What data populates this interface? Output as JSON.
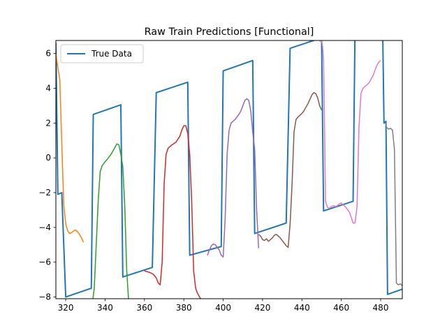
{
  "chart_data": {
    "type": "line",
    "title": "Raw Train Predictions [Functional]",
    "xlabel": "",
    "ylabel": "",
    "xlim": [
      315,
      491
    ],
    "ylim": [
      -8.1,
      6.75
    ],
    "x_ticks": [
      320,
      340,
      360,
      380,
      400,
      420,
      440,
      460,
      480
    ],
    "y_ticks": [
      -8,
      -6,
      -4,
      -2,
      0,
      2,
      4,
      6
    ],
    "grid": false,
    "legend": {
      "placement": "top-left",
      "entries": [
        "True Data"
      ]
    },
    "series": [
      {
        "name": "True Data",
        "color": "#1f77b4",
        "x": [
          315,
          316,
          318,
          320,
          333,
          334,
          348,
          349,
          364,
          366,
          382,
          383,
          399,
          400,
          415,
          416,
          432,
          434,
          450,
          451,
          466,
          467,
          481,
          481.7,
          482.7,
          483.5,
          491
        ],
        "y": [
          6.6,
          -2.1,
          -2.0,
          -8.0,
          -7.5,
          2.5,
          3.05,
          -6.85,
          -6.3,
          3.75,
          4.35,
          -5.6,
          -5.1,
          5.0,
          5.6,
          -4.35,
          -3.75,
          6.3,
          6.9,
          -3.05,
          -2.5,
          7.6,
          7.6,
          2.0,
          2.1,
          -7.85,
          -7.55
        ]
      },
      {
        "color": "#ff7f0e",
        "x": [
          315,
          316,
          317,
          318,
          319,
          320,
          321,
          322,
          323,
          324,
          325,
          326,
          327,
          328,
          329
        ],
        "y": [
          6.0,
          5.2,
          4.5,
          0.8,
          -2.7,
          -3.8,
          -4.2,
          -4.35,
          -4.3,
          -4.2,
          -4.15,
          -4.25,
          -4.4,
          -4.6,
          -4.85
        ]
      },
      {
        "color": "#2ca02c",
        "x": [
          333.5,
          334.5,
          335.5,
          336.5,
          337.5,
          338.5,
          339.5,
          341,
          343,
          345,
          346,
          347,
          348,
          349,
          350,
          351,
          352
        ],
        "y": [
          -8.4,
          -7.5,
          -5.0,
          -2.5,
          -0.8,
          -0.45,
          -0.3,
          -0.1,
          0.2,
          0.6,
          0.8,
          0.75,
          0.2,
          -0.5,
          -2.8,
          -6.5,
          -8.3
        ]
      },
      {
        "color": "#d62728",
        "x": [
          360,
          363,
          364.5,
          366,
          367,
          368,
          369,
          370,
          371,
          372,
          374,
          376,
          378,
          379,
          380,
          381,
          382,
          383,
          384,
          385,
          386,
          387,
          388,
          389
        ],
        "y": [
          -6.5,
          -6.6,
          -6.7,
          -6.9,
          -7.2,
          -7.3,
          -6.0,
          -1.5,
          0.2,
          0.55,
          0.75,
          0.9,
          1.25,
          1.6,
          1.85,
          1.85,
          1.4,
          0.2,
          -2.5,
          -6.5,
          -7.5,
          -7.8,
          -8.0,
          -8.2
        ]
      },
      {
        "color": "#9467bd",
        "x": [
          392,
          393,
          394,
          395,
          396,
          397,
          398,
          399,
          400,
          401,
          402,
          403,
          404,
          405,
          406,
          407,
          408,
          409,
          410,
          411,
          412,
          413,
          414,
          415,
          416,
          417,
          418
        ],
        "y": [
          -5.6,
          -5.3,
          -5.05,
          -4.95,
          -5.0,
          -5.15,
          -5.3,
          -5.6,
          -5.7,
          -3.5,
          0.2,
          1.6,
          2.0,
          2.1,
          2.2,
          2.35,
          2.5,
          2.7,
          3.0,
          3.3,
          3.4,
          3.3,
          2.7,
          1.5,
          0.5,
          -3.0,
          -5.2
        ]
      },
      {
        "color": "#8c564b",
        "x": [
          418,
          419,
          420,
          421,
          422,
          423,
          424,
          425,
          426,
          427,
          428,
          429,
          430,
          431,
          432,
          433,
          434,
          435,
          436,
          437,
          438,
          439,
          440,
          441,
          442,
          443,
          444,
          445,
          446,
          447,
          448,
          449,
          450
        ],
        "y": [
          -4.4,
          -4.5,
          -4.7,
          -4.75,
          -4.65,
          -4.8,
          -4.7,
          -4.6,
          -4.45,
          -4.4,
          -4.5,
          -4.6,
          -4.75,
          -4.9,
          -5.05,
          -5.15,
          -3.8,
          -1.5,
          1.5,
          2.2,
          2.35,
          2.45,
          2.55,
          2.7,
          2.9,
          3.1,
          3.35,
          3.6,
          3.75,
          3.7,
          3.45,
          3.0,
          2.75
        ]
      },
      {
        "color": "#e377c2",
        "x": [
          449,
          450,
          450.5,
          451,
          452,
          453,
          454,
          455,
          456,
          457,
          458,
          459,
          460,
          461,
          462,
          463,
          464,
          465,
          466,
          467,
          468,
          469,
          470,
          471,
          472,
          473,
          474,
          475,
          476,
          477,
          478,
          479,
          480
        ],
        "y": [
          6.7,
          6.8,
          6.4,
          5.6,
          -2.5,
          -2.85,
          -2.9,
          -2.8,
          -2.75,
          -2.8,
          -2.75,
          -2.65,
          -2.6,
          -2.7,
          -2.8,
          -2.95,
          -3.1,
          -3.4,
          -3.75,
          -3.75,
          -2.8,
          1.8,
          3.7,
          4.0,
          4.1,
          4.2,
          4.3,
          4.5,
          4.7,
          5.0,
          5.3,
          5.5,
          5.6
        ]
      },
      {
        "color": "#7f7f7f",
        "x": [
          482.5,
          483,
          484,
          485,
          486,
          487,
          488,
          489,
          490,
          491
        ],
        "y": [
          2.0,
          1.75,
          1.65,
          1.7,
          1.6,
          0.5,
          -7.2,
          -7.3,
          -7.25,
          -7.35
        ]
      }
    ]
  }
}
